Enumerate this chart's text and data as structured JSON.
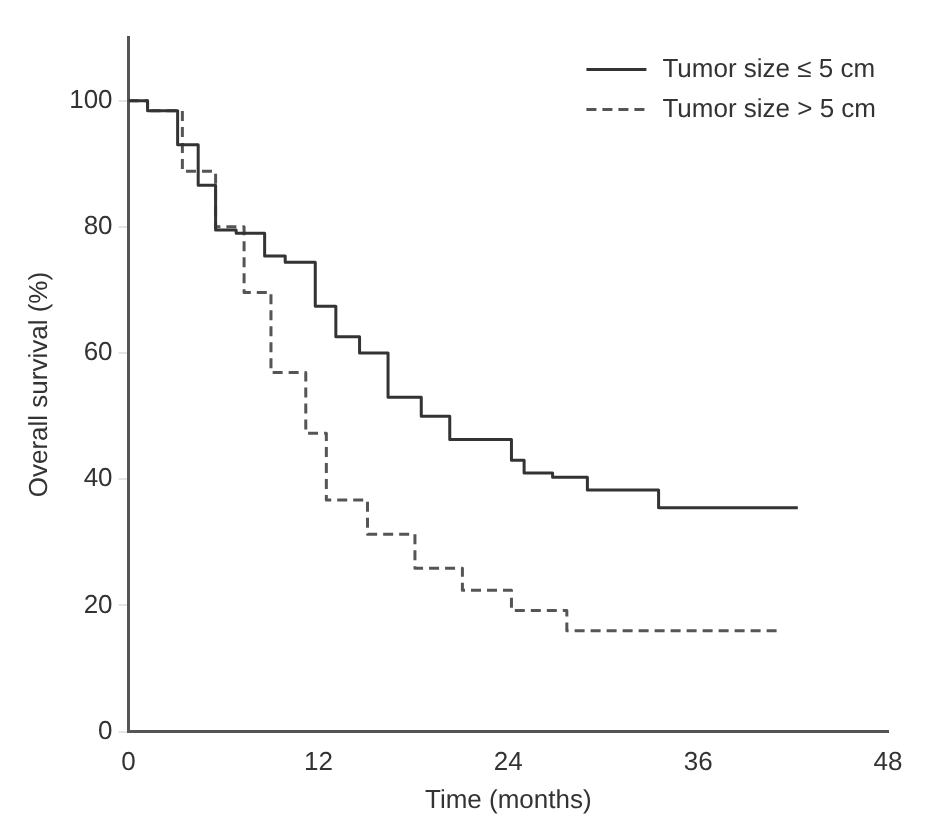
{
  "chart_data": {
    "type": "step",
    "xlabel": "Time (months)",
    "ylabel": "Overall survival (%)",
    "xlim": [
      0,
      48
    ],
    "xticks": [
      0,
      12,
      24,
      36,
      48
    ],
    "ylim": [
      0,
      110
    ],
    "yticks": [
      0,
      20,
      40,
      60,
      80,
      100
    ],
    "grid": false,
    "legend": "top right",
    "marker": "none",
    "series": [
      {
        "name": "Tumor size ≤ 5 cm",
        "color": "#333333",
        "line_style": "solid",
        "x": [
          0,
          1.2,
          3.1,
          4.4,
          5.5,
          6.8,
          8.6,
          9.9,
          11.8,
          13.1,
          14.6,
          16.4,
          18.5,
          20.3,
          24.2,
          25,
          26.8,
          29,
          33.5,
          42.3
        ],
        "values": [
          100,
          98.4,
          93,
          86.6,
          79.5,
          79,
          75.4,
          74.4,
          67.4,
          62.6,
          60,
          53,
          50,
          46.3,
          43,
          41,
          40.3,
          38.3,
          35.5,
          35.5
        ]
      },
      {
        "name": "Tumor size > 5 cm",
        "color": "#555555",
        "line_style": "dashed",
        "x": [
          0,
          1.2,
          3.4,
          5.5,
          7.3,
          9,
          11.2,
          12.5,
          15.1,
          18.1,
          21.1,
          24.2,
          27.7,
          41.2
        ],
        "values": [
          100,
          98.4,
          88.8,
          80,
          69.6,
          56.9,
          47.3,
          36.7,
          31.3,
          25.9,
          22.4,
          19.2,
          16,
          16
        ]
      }
    ]
  }
}
